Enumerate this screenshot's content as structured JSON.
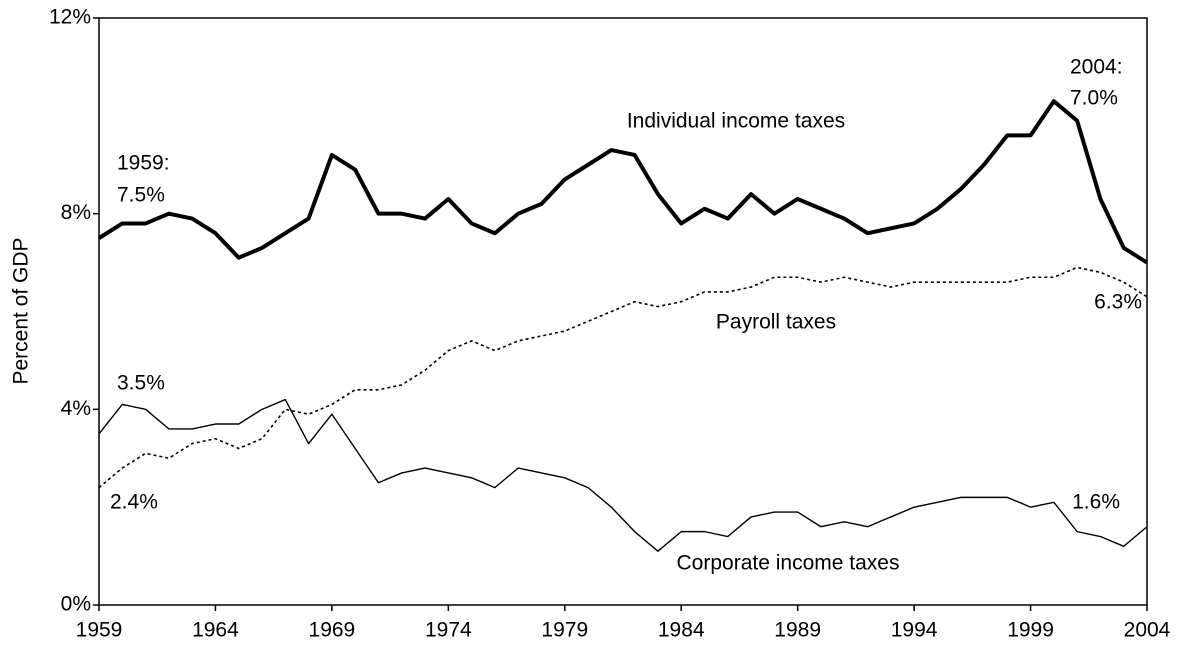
{
  "chart_data": {
    "type": "line",
    "y_label": "Percent of GDP",
    "x": [
      1959,
      1960,
      1961,
      1962,
      1963,
      1964,
      1965,
      1966,
      1967,
      1968,
      1969,
      1970,
      1971,
      1972,
      1973,
      1974,
      1975,
      1976,
      1977,
      1978,
      1979,
      1980,
      1981,
      1982,
      1983,
      1984,
      1985,
      1986,
      1987,
      1988,
      1989,
      1990,
      1991,
      1992,
      1993,
      1994,
      1995,
      1996,
      1997,
      1998,
      1999,
      2000,
      2001,
      2002,
      2003,
      2004
    ],
    "series": [
      {
        "name": "Individual income taxes",
        "color": "#000000",
        "width": 4,
        "dotted": false,
        "values": [
          7.5,
          7.8,
          7.8,
          8.0,
          7.9,
          7.6,
          7.1,
          7.3,
          7.6,
          7.9,
          9.2,
          8.9,
          8.0,
          8.0,
          7.9,
          8.3,
          7.8,
          7.6,
          8.0,
          8.2,
          8.7,
          9.0,
          9.3,
          9.2,
          8.4,
          7.8,
          8.1,
          7.9,
          8.4,
          8.0,
          8.3,
          8.1,
          7.9,
          7.6,
          7.7,
          7.8,
          8.1,
          8.5,
          9.0,
          9.6,
          9.6,
          10.3,
          9.9,
          8.3,
          7.3,
          7.0
        ]
      },
      {
        "name": "Payroll taxes",
        "color": "#000000",
        "width": 1.6,
        "dotted": true,
        "values": [
          2.4,
          2.8,
          3.1,
          3.0,
          3.3,
          3.4,
          3.2,
          3.4,
          4.0,
          3.9,
          4.1,
          4.4,
          4.4,
          4.5,
          4.8,
          5.2,
          5.4,
          5.2,
          5.4,
          5.5,
          5.6,
          5.8,
          6.0,
          6.2,
          6.1,
          6.2,
          6.4,
          6.4,
          6.5,
          6.7,
          6.7,
          6.6,
          6.7,
          6.6,
          6.5,
          6.6,
          6.6,
          6.6,
          6.6,
          6.6,
          6.7,
          6.7,
          6.9,
          6.8,
          6.6,
          6.3
        ]
      },
      {
        "name": "Corporate income taxes",
        "color": "#000000",
        "width": 1.4,
        "dotted": false,
        "values": [
          3.5,
          4.1,
          4.0,
          3.6,
          3.6,
          3.7,
          3.7,
          4.0,
          4.2,
          3.3,
          3.9,
          3.2,
          2.5,
          2.7,
          2.8,
          2.7,
          2.6,
          2.4,
          2.8,
          2.7,
          2.6,
          2.4,
          2.0,
          1.5,
          1.1,
          1.5,
          1.5,
          1.4,
          1.8,
          1.9,
          1.9,
          1.6,
          1.7,
          1.6,
          1.8,
          2.0,
          2.1,
          2.2,
          2.2,
          2.2,
          2.0,
          2.1,
          1.5,
          1.4,
          1.2,
          1.6
        ]
      }
    ],
    "annotations": [
      "1959:",
      "7.5%",
      "2004:",
      "7.0%",
      "3.5%",
      "2.4%",
      "6.3%",
      "1.6%"
    ],
    "xlim": [
      1959,
      2004
    ],
    "xticks": [
      1959,
      1964,
      1969,
      1974,
      1979,
      1984,
      1989,
      1994,
      1999,
      2004
    ],
    "ylim": [
      0,
      12
    ],
    "yticks": [
      {
        "value": 0,
        "label": "0%"
      },
      {
        "value": 4,
        "label": "4%"
      },
      {
        "value": 8,
        "label": "8%"
      },
      {
        "value": 12,
        "label": "12%"
      }
    ],
    "grid": false
  }
}
